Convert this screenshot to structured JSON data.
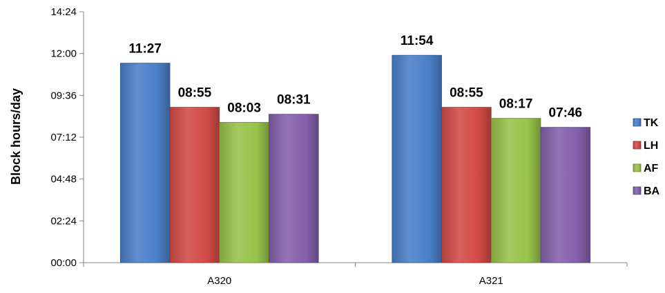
{
  "chart_data": {
    "type": "bar",
    "ylabel": "Block hours/day",
    "xlabel": "",
    "categories": [
      "A320",
      "A321"
    ],
    "y_ticks": [
      "00:00",
      "02:24",
      "04:48",
      "07:12",
      "09:36",
      "12:00",
      "14:24"
    ],
    "ylim_minutes": [
      0,
      864
    ],
    "tick_step_minutes": 144,
    "legend_position": "right",
    "grid": false,
    "series": [
      {
        "name": "TK",
        "color": "#4a7fc8",
        "values_minutes": [
          687,
          714
        ],
        "labels": [
          "11:27",
          "11:54"
        ]
      },
      {
        "name": "LH",
        "color": "#d24a47",
        "values_minutes": [
          535,
          535
        ],
        "labels": [
          "08:55",
          "08:55"
        ]
      },
      {
        "name": "AF",
        "color": "#98c24a",
        "values_minutes": [
          483,
          497
        ],
        "labels": [
          "08:03",
          "08:17"
        ]
      },
      {
        "name": "BA",
        "color": "#8460ab",
        "values_minutes": [
          511,
          466
        ],
        "labels": [
          "08:31",
          "07:46"
        ]
      }
    ]
  }
}
